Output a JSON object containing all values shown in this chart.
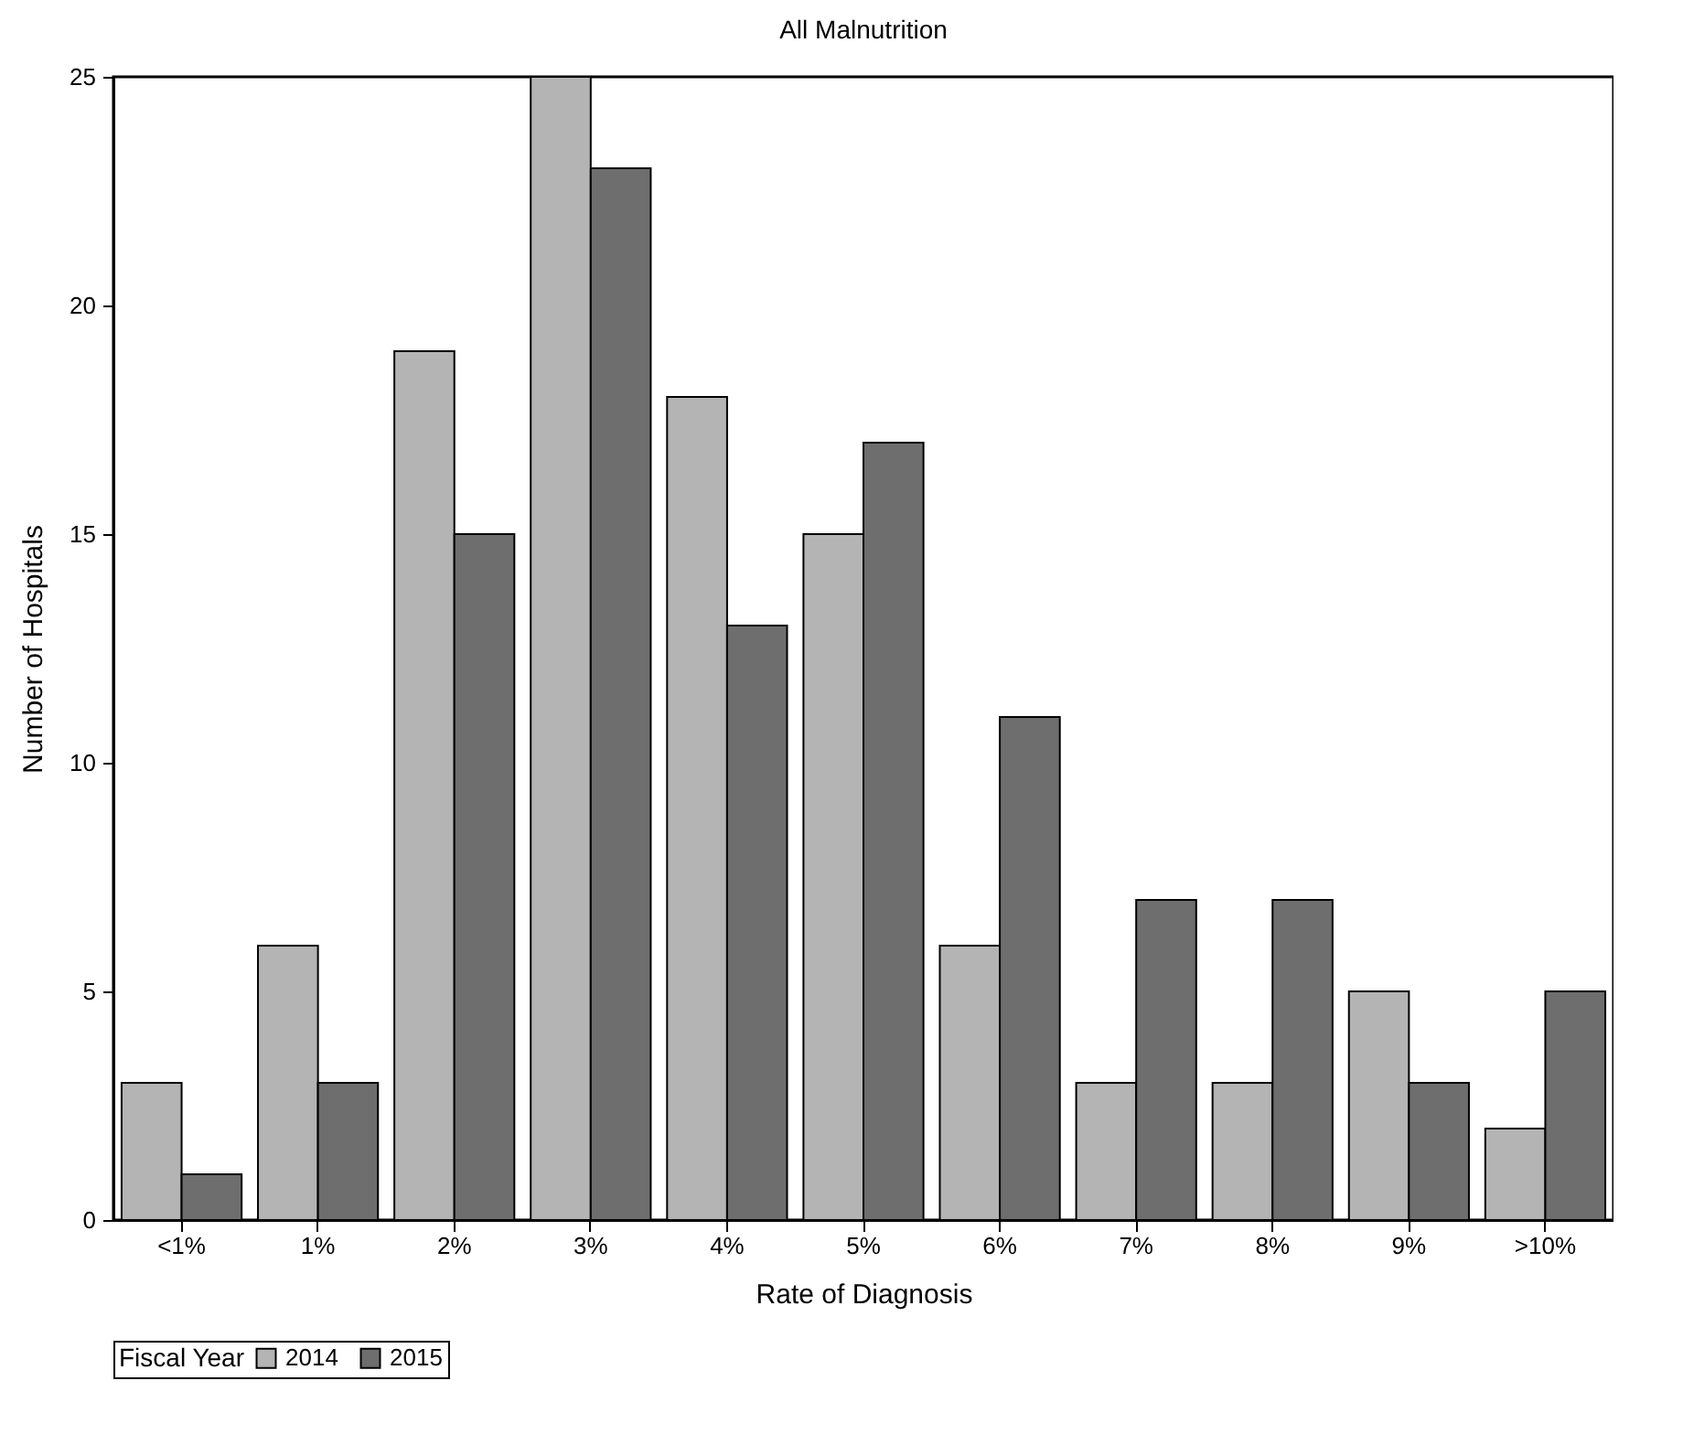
{
  "chart_data": {
    "type": "bar",
    "title": "All Malnutrition",
    "xlabel": "Rate of Diagnosis",
    "ylabel": "Number of Hospitals",
    "legend_title": "Fiscal Year",
    "legend": "bottom",
    "categories": [
      "<1%",
      "1%",
      "2%",
      "3%",
      "4%",
      "5%",
      "6%",
      "7%",
      "8%",
      "9%",
      ">10%"
    ],
    "ylim": [
      0,
      25
    ],
    "yticks": [
      0,
      5,
      10,
      15,
      20,
      25
    ],
    "series": [
      {
        "name": "2014",
        "color": "#b4b4b4",
        "values": [
          3,
          6,
          19,
          25,
          18,
          15,
          6,
          3,
          3,
          5,
          2
        ]
      },
      {
        "name": "2015",
        "color": "#6e6e6e",
        "values": [
          1,
          3,
          15,
          23,
          13,
          17,
          11,
          7,
          7,
          3,
          5
        ]
      }
    ]
  }
}
